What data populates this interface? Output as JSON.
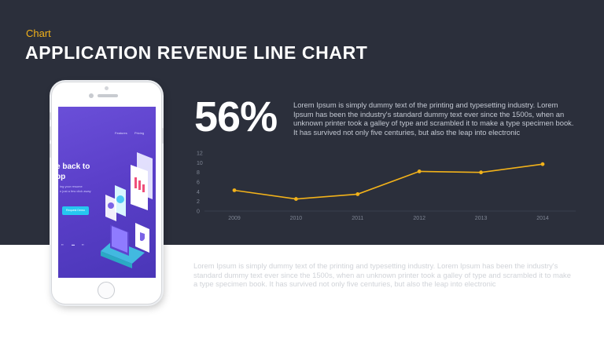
{
  "header": {
    "kicker": "Chart",
    "title": "APPLICATION REVENUE LINE CHART"
  },
  "stat": {
    "value": "56%",
    "description": "Lorem Ipsum is simply dummy text of the printing and typesetting industry. Lorem Ipsum has been the industry's standard dummy text ever since the 1500s, when an unknown printer took a galley of type and scrambled it to make a type specimen book. It has survived not only five centuries, but also the leap into electronic"
  },
  "bottom_text": "Lorem Ipsum is simply dummy text of the printing and typesetting industry. Lorem Ipsum has been the industry's standard dummy text ever since the 1500s, when an unknown printer took a galley of type and scrambled it to make a type specimen book. It has survived not only five centuries, but also the leap into electronic",
  "phone_screen": {
    "nav": [
      "Features",
      "Pricing"
    ],
    "hero_line1": "e back to",
    "hero_line2": "pp",
    "sub_line1": "ing your resume",
    "sub_line2": "n just a few click away",
    "cta": "Request Demo"
  },
  "colors": {
    "background_dark": "#2b2f3b",
    "accent": "#f2b21a",
    "line": "#f2b21a",
    "axis_text": "#7f8694"
  },
  "chart_data": {
    "type": "line",
    "title": "",
    "xlabel": "",
    "ylabel": "",
    "categories": [
      "2009",
      "2010",
      "2011",
      "2012",
      "2013",
      "2014"
    ],
    "series": [
      {
        "values": [
          4.3,
          2.5,
          3.5,
          8.2,
          8.0,
          9.7
        ]
      }
    ],
    "ylim": [
      0,
      12
    ],
    "yticks": [
      0,
      2,
      4,
      6,
      8,
      10,
      12
    ],
    "grid": false,
    "legend": "none"
  }
}
